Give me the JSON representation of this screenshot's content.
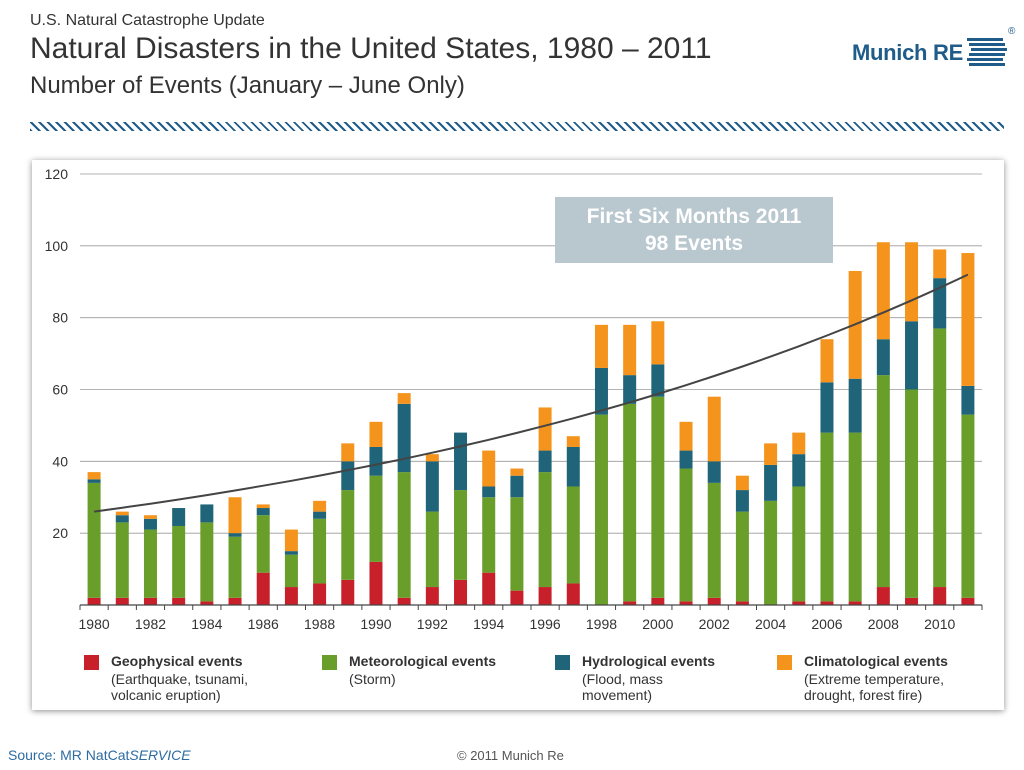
{
  "header": {
    "kicker": "U.S. Natural Catastrophe Update",
    "title": "Natural Disasters in the United States, 1980 – 2011",
    "subtitle": "Number of Events (January – June Only)"
  },
  "logo": {
    "text": "Munich RE",
    "mark": "®",
    "color": "#1f5c8a"
  },
  "callout": {
    "line1": "First Six Months 2011",
    "line2": "98 Events"
  },
  "footer": {
    "source_prefix": "Source: MR NatCat",
    "source_italic": "SERVICE",
    "copyright": "© 2011 Munich Re"
  },
  "legend": [
    {
      "name": "Geophysical events",
      "desc": "(Earthquake, tsunami, volcanic eruption)",
      "color": "#c8202b"
    },
    {
      "name": "Meteorological events",
      "desc": "(Storm)",
      "color": "#6a9e2b"
    },
    {
      "name": "Hydrological events",
      "desc": "(Flood, mass movement)",
      "color": "#1f6479"
    },
    {
      "name": "Climatological events",
      "desc": "(Extreme temperature, drought, forest fire)",
      "color": "#f5941d"
    }
  ],
  "chart_data": {
    "type": "bar",
    "stacked": true,
    "categories": [
      1980,
      1981,
      1982,
      1983,
      1984,
      1985,
      1986,
      1987,
      1988,
      1989,
      1990,
      1991,
      1992,
      1993,
      1994,
      1995,
      1996,
      1997,
      1998,
      1999,
      2000,
      2001,
      2002,
      2003,
      2004,
      2005,
      2006,
      2007,
      2008,
      2009,
      2010,
      2011
    ],
    "x_tick_labels": [
      "1980",
      "1982",
      "1984",
      "1986",
      "1988",
      "1990",
      "1992",
      "1994",
      "1996",
      "1998",
      "2000",
      "2002",
      "2004",
      "2006",
      "2008",
      "2010"
    ],
    "series": [
      {
        "name": "Geophysical events",
        "color": "#c8202b",
        "values": [
          2,
          2,
          2,
          2,
          1,
          2,
          9,
          5,
          6,
          7,
          12,
          2,
          5,
          7,
          9,
          4,
          5,
          6,
          0,
          1,
          2,
          1,
          2,
          1,
          0,
          1,
          1,
          1,
          5,
          2,
          5,
          2
        ]
      },
      {
        "name": "Meteorological events",
        "color": "#6a9e2b",
        "values": [
          32,
          21,
          19,
          20,
          22,
          17,
          16,
          9,
          18,
          25,
          24,
          35,
          21,
          25,
          21,
          26,
          32,
          27,
          53,
          55,
          56,
          37,
          32,
          25,
          29,
          32,
          47,
          47,
          59,
          58,
          72,
          51
        ]
      },
      {
        "name": "Hydrological events",
        "color": "#1f6479",
        "values": [
          1,
          2,
          3,
          5,
          5,
          1,
          2,
          1,
          2,
          8,
          8,
          19,
          14,
          16,
          3,
          6,
          6,
          11,
          13,
          8,
          9,
          5,
          6,
          6,
          10,
          9,
          14,
          15,
          10,
          19,
          14,
          8
        ]
      },
      {
        "name": "Climatological events",
        "color": "#f5941d",
        "values": [
          2,
          1,
          1,
          0,
          0,
          10,
          1,
          6,
          3,
          5,
          7,
          3,
          2,
          0,
          10,
          2,
          12,
          3,
          12,
          14,
          12,
          8,
          18,
          4,
          6,
          6,
          12,
          30,
          27,
          22,
          8,
          37
        ]
      }
    ],
    "trend": {
      "start": 26,
      "end": 92
    },
    "ylim": [
      0,
      120
    ],
    "y_ticks": [
      20,
      40,
      60,
      80,
      100,
      120
    ],
    "grid": true,
    "legend_position": "bottom"
  }
}
